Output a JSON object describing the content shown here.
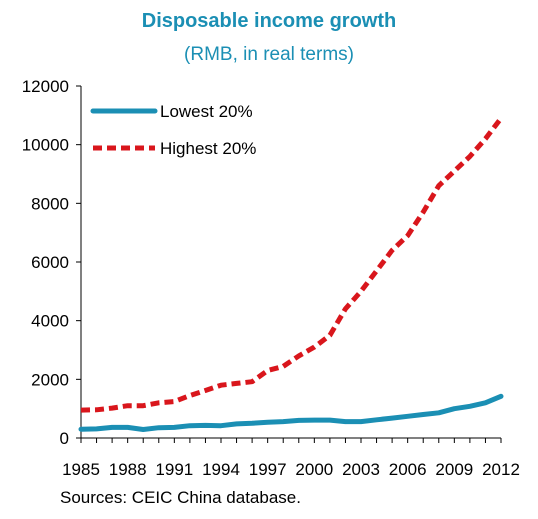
{
  "chart_data": {
    "type": "line",
    "title": "Disposable income growth",
    "subtitle": "(RMB, in real terms)",
    "source": "Sources: CEIC China database.",
    "x": [
      1985,
      1986,
      1987,
      1988,
      1989,
      1990,
      1991,
      1992,
      1993,
      1994,
      1995,
      1996,
      1997,
      1998,
      1999,
      2000,
      2001,
      2002,
      2003,
      2004,
      2005,
      2006,
      2007,
      2008,
      2009,
      2010,
      2011,
      2012
    ],
    "x_tick_labels": [
      "1985",
      "1988",
      "1991",
      "1994",
      "1997",
      "2000",
      "2003",
      "2006",
      "2009",
      "2012"
    ],
    "y_tick_labels": [
      "0",
      "2000",
      "4000",
      "6000",
      "8000",
      "10000",
      "12000"
    ],
    "ylim": [
      0,
      12000
    ],
    "xlim": [
      1985,
      2012
    ],
    "grid": false,
    "legend_position": "top-left",
    "series": [
      {
        "name": "Lowest 20%",
        "color": "#1b8fb4",
        "style": "solid",
        "values": [
          300,
          310,
          360,
          360,
          290,
          350,
          360,
          420,
          430,
          420,
          480,
          500,
          540,
          560,
          600,
          610,
          610,
          560,
          560,
          620,
          680,
          740,
          800,
          860,
          1000,
          1080,
          1200,
          1420
        ]
      },
      {
        "name": "Highest 20%",
        "color": "#d9161c",
        "style": "dashed",
        "values": [
          950,
          960,
          1020,
          1100,
          1100,
          1200,
          1240,
          1450,
          1620,
          1800,
          1860,
          1920,
          2300,
          2440,
          2800,
          3100,
          3500,
          4400,
          5000,
          5700,
          6400,
          6900,
          7700,
          8600,
          9100,
          9600,
          10200,
          10900
        ]
      }
    ]
  }
}
